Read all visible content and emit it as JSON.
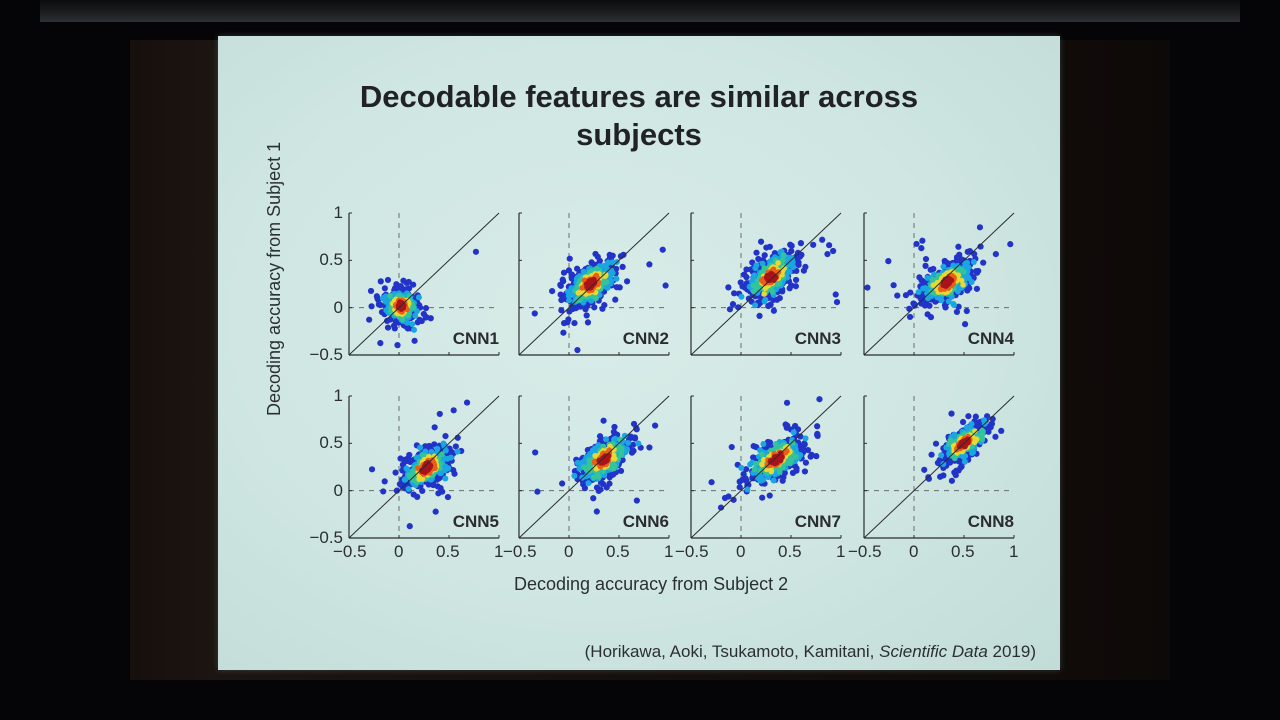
{
  "slide": {
    "title_line1": "Decodable features are similar across",
    "title_line2": "subjects",
    "y_axis_label": "Decoding accuracy from Subject 1",
    "x_axis_label": "Decoding accuracy from Subject 2",
    "citation_authors": "(Horikawa, Aoki, Tsukamoto, Kamitani, ",
    "citation_journal": "Scientific Data",
    "citation_year": " 2019)"
  },
  "ticks": {
    "y": [
      "1",
      "0.5",
      "0",
      "−0.5"
    ],
    "x": [
      "−0.5",
      "0",
      "0.5",
      "1"
    ]
  },
  "colors": {
    "low_density": "#2233c8",
    "mid_low": "#1aa6e0",
    "mid": "#34c49a",
    "mid_high": "#e8d830",
    "high": "#e86018",
    "peak": "#a8141a",
    "axis": "#2a2c2e"
  },
  "chart_data": {
    "type": "scatter",
    "title": "Decodable features are similar across subjects",
    "xlabel": "Decoding accuracy from Subject 2",
    "ylabel": "Decoding accuracy from Subject 1",
    "xlim": [
      -0.5,
      1
    ],
    "ylim": [
      -0.5,
      1
    ],
    "xticks": [
      -0.5,
      0,
      0.5,
      1
    ],
    "yticks": [
      -0.5,
      0,
      0.5,
      1
    ],
    "reference_lines": [
      "identity y=x (solid)",
      "x=0 (dashed)",
      "y=0 (dashed)"
    ],
    "coloring": "point density (jet colormap: blue low to dark red high)",
    "layout": "2 rows x 4 columns",
    "panels": [
      {
        "name": "CNN1",
        "center": [
          0.02,
          0.02
        ],
        "spread": [
          0.16,
          0.14
        ],
        "tilt": 30,
        "extent_x": [
          -0.3,
          0.45
        ],
        "extent_y": [
          -0.35,
          0.48
        ]
      },
      {
        "name": "CNN2",
        "center": [
          0.22,
          0.25
        ],
        "spread": [
          0.3,
          0.13
        ],
        "tilt": 45,
        "extent_x": [
          -0.3,
          0.75
        ],
        "extent_y": [
          -0.25,
          0.8
        ]
      },
      {
        "name": "CNN3",
        "center": [
          0.3,
          0.32
        ],
        "spread": [
          0.3,
          0.14
        ],
        "tilt": 48,
        "extent_x": [
          -0.25,
          0.7
        ],
        "extent_y": [
          -0.25,
          0.75
        ]
      },
      {
        "name": "CNN4",
        "center": [
          0.33,
          0.27
        ],
        "spread": [
          0.3,
          0.13
        ],
        "tilt": 40,
        "extent_x": [
          -0.2,
          0.72
        ],
        "extent_y": [
          -0.2,
          0.65
        ]
      },
      {
        "name": "CNN5",
        "center": [
          0.28,
          0.24
        ],
        "spread": [
          0.28,
          0.13
        ],
        "tilt": 42,
        "extent_x": [
          -0.3,
          0.72
        ],
        "extent_y": [
          -0.35,
          0.72
        ]
      },
      {
        "name": "CNN6",
        "center": [
          0.35,
          0.33
        ],
        "spread": [
          0.3,
          0.13
        ],
        "tilt": 45,
        "extent_x": [
          -0.2,
          0.7
        ],
        "extent_y": [
          -0.2,
          0.75
        ]
      },
      {
        "name": "CNN7",
        "center": [
          0.35,
          0.33
        ],
        "spread": [
          0.32,
          0.13
        ],
        "tilt": 40,
        "extent_x": [
          -0.25,
          0.78
        ],
        "extent_y": [
          -0.25,
          0.78
        ]
      },
      {
        "name": "CNN8",
        "center": [
          0.5,
          0.5
        ],
        "spread": [
          0.28,
          0.1
        ],
        "tilt": 42,
        "extent_x": [
          -0.05,
          0.8
        ],
        "extent_y": [
          0.0,
          0.8
        ]
      }
    ]
  }
}
